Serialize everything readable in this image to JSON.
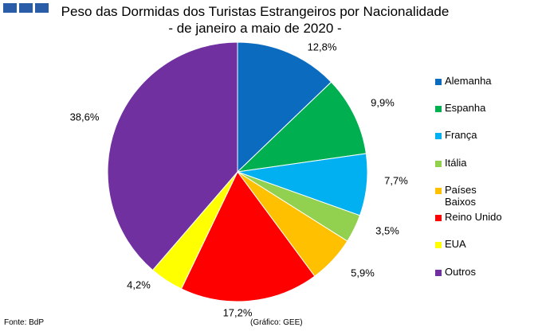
{
  "header": {
    "logo_icon": "three-blue-squares-logo",
    "title_line1": "Peso das Dormidas dos Turistas Estrangeiros por Nacionalidade",
    "title_line2": "- de janeiro a maio de 2020 -"
  },
  "chart_data": {
    "type": "pie",
    "title": "Peso das Dormidas dos Turistas Estrangeiros por Nacionalidade - de janeiro a maio de 2020 -",
    "start_angle_deg": 0,
    "direction": "clockwise",
    "legend_position": "right",
    "slices": [
      {
        "label": "Alemanha",
        "value": 12.8,
        "display": "12,8%",
        "color": "#0b6bbf"
      },
      {
        "label": "Espanha",
        "value": 9.9,
        "display": "9,9%",
        "color": "#00b050"
      },
      {
        "label": "França",
        "value": 7.7,
        "display": "7,7%",
        "color": "#00b0f0"
      },
      {
        "label": "Itália",
        "value": 3.5,
        "display": "3,5%",
        "color": "#92d050"
      },
      {
        "label": "Países Baixos",
        "value": 5.9,
        "display": "5,9%",
        "color": "#ffc000"
      },
      {
        "label": "Reino Unido",
        "value": 17.2,
        "display": "17,2%",
        "color": "#ff0000"
      },
      {
        "label": "EUA",
        "value": 4.2,
        "display": "4,2%",
        "color": "#ffff00"
      },
      {
        "label": "Outros",
        "value": 38.6,
        "display": "38,6%",
        "color": "#7030a0"
      }
    ]
  },
  "footer": {
    "source": "Fonte: BdP",
    "credit": "(Gráfico: GEE)"
  }
}
